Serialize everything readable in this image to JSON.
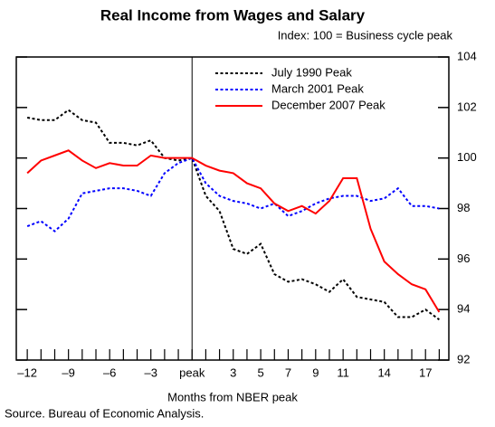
{
  "chart_data": {
    "type": "line",
    "title": "Real Income from Wages and Salary",
    "subtitle": "Index: 100 = Business cycle peak",
    "xlabel": "Months from NBER peak",
    "source": "Source. Bureau of Economic Analysis.",
    "x": [
      -12,
      -11,
      -10,
      -9,
      -8,
      -7,
      -6,
      -5,
      -4,
      -3,
      -2,
      -1,
      0,
      1,
      2,
      3,
      4,
      5,
      6,
      7,
      8,
      9,
      10,
      11,
      12,
      13,
      14,
      15,
      16,
      17,
      18
    ],
    "series": [
      {
        "name": "July 1990 Peak",
        "color": "#000000",
        "linestyle": "dotted",
        "values": [
          101.6,
          101.5,
          101.5,
          101.9,
          101.5,
          101.4,
          100.6,
          100.6,
          100.5,
          100.7,
          100.0,
          99.9,
          100,
          98.5,
          97.9,
          96.4,
          96.2,
          96.6,
          95.4,
          95.1,
          95.2,
          95.0,
          94.7,
          95.2,
          94.5,
          94.4,
          94.3,
          93.7,
          93.7,
          94.0,
          93.6
        ]
      },
      {
        "name": "March 2001 Peak",
        "color": "#0000ff",
        "linestyle": "dotted",
        "values": [
          97.3,
          97.5,
          97.1,
          97.6,
          98.6,
          98.7,
          98.8,
          98.8,
          98.7,
          98.5,
          99.4,
          99.8,
          100,
          99.0,
          98.5,
          98.3,
          98.2,
          98.0,
          98.2,
          97.7,
          97.9,
          98.2,
          98.4,
          98.5,
          98.5,
          98.3,
          98.4,
          98.8,
          98.1,
          98.1,
          98.0
        ]
      },
      {
        "name": "December 2007 Peak",
        "color": "#ff0000",
        "linestyle": "solid",
        "values": [
          99.4,
          99.9,
          100.1,
          100.3,
          99.9,
          99.6,
          99.8,
          99.7,
          99.7,
          100.1,
          100.0,
          100.0,
          100,
          99.7,
          99.5,
          99.4,
          99.0,
          98.8,
          98.2,
          97.9,
          98.1,
          97.8,
          98.3,
          99.2,
          99.2,
          97.2,
          95.9,
          95.4,
          95.0,
          94.8,
          93.9
        ]
      }
    ],
    "xlim": [
      -12.8,
      18.7
    ],
    "xticks": [
      {
        "value": -12,
        "label": "–12"
      },
      {
        "value": -9,
        "label": "–9"
      },
      {
        "value": -6,
        "label": "–6"
      },
      {
        "value": -3,
        "label": "–3"
      },
      {
        "value": 0,
        "label": "peak"
      },
      3,
      5,
      7,
      9,
      11,
      14,
      17
    ],
    "xminorticks": [
      -12,
      -11,
      -10,
      -9,
      -8,
      -7,
      -6,
      -5,
      -4,
      -3,
      -2,
      -1,
      0,
      1,
      2,
      3,
      4,
      5,
      6,
      7,
      8,
      9,
      10,
      11,
      12,
      13,
      14,
      15,
      16,
      17,
      18
    ],
    "ylim": [
      92,
      104
    ],
    "yticks": [
      92,
      94,
      96,
      98,
      100,
      102,
      104
    ],
    "vline": 0
  }
}
